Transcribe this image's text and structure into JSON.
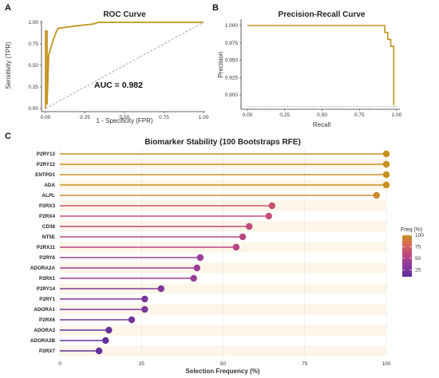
{
  "chart_data": [
    {
      "panel": "A",
      "type": "line",
      "title": "ROC Curve",
      "xlabel": "1 - Specificity (FPR)",
      "ylabel": "Sensitivity (TPR)",
      "xlim": [
        0,
        1
      ],
      "ylim": [
        0,
        1
      ],
      "xticks": [
        "0.00",
        "0.25",
        "0.50",
        "0.75",
        "1.00"
      ],
      "yticks": [
        "0.00",
        "0.25",
        "0.50",
        "0.75",
        "1.00"
      ],
      "annotation": "AUC = 0.982",
      "diagonal_reference": true,
      "color": "#c2921e",
      "x": [
        0,
        0,
        0.01,
        0.01,
        0.02,
        0.05,
        0.07,
        0.08,
        0.12,
        0.2,
        0.25,
        0.3,
        0.32,
        0.33,
        1.0
      ],
      "y": [
        0,
        0.9,
        0.9,
        0.05,
        0.62,
        0.8,
        0.9,
        0.93,
        0.94,
        0.96,
        0.97,
        0.98,
        0.99,
        1.0,
        1.0
      ]
    },
    {
      "panel": "B",
      "type": "line",
      "title": "Precision-Recall Curve",
      "xlabel": "Recall",
      "ylabel": "Precision",
      "xlim": [
        0,
        1
      ],
      "ylim": [
        0.885,
        1.0
      ],
      "xticks": [
        "0.00",
        "0.25",
        "0.50",
        "0.75",
        "1.00"
      ],
      "yticks": [
        "0.900",
        "0.925",
        "0.950",
        "0.975",
        "1.000"
      ],
      "baseline_y": 0.883,
      "color": "#c2921e",
      "x": [
        0,
        0.92,
        0.92,
        0.94,
        0.94,
        0.96,
        0.96,
        0.98,
        0.98
      ],
      "y": [
        1.0,
        1.0,
        0.99,
        0.99,
        0.98,
        0.98,
        0.97,
        0.97,
        0.885
      ]
    },
    {
      "panel": "C",
      "type": "bar",
      "subtype": "lollipop",
      "title": "Biomarker Stability (100 Bootstraps RFE)",
      "xlabel": "Selection Frequency (%)",
      "ylabel": "",
      "xlim": [
        0,
        100
      ],
      "xticks": [
        "0",
        "25",
        "50",
        "75",
        "100"
      ],
      "categories": [
        "P2RY13",
        "P2RY12",
        "ENTPD1",
        "ADA",
        "ALPL",
        "P2RX3",
        "P2RX4",
        "CD38",
        "NT5E",
        "P2RX11",
        "P2RY6",
        "ADORA2A",
        "P2RX1",
        "P2RY14",
        "P2RY1",
        "ADORA1",
        "P2RX6",
        "ADORA3",
        "ADORA2B",
        "P2RX7"
      ],
      "values": [
        100,
        100,
        100,
        100,
        97,
        65,
        64,
        58,
        56,
        54,
        43,
        42,
        41,
        31,
        26,
        26,
        22,
        15,
        14,
        12
      ],
      "legend": {
        "title": "Freq (%)",
        "ticks": [
          "100",
          "75",
          "50",
          "25"
        ],
        "placement": "right"
      },
      "colorscale": [
        "#5b2e9c",
        "#8f3a9b",
        "#c14a7c",
        "#dc6a52",
        "#c7901f"
      ]
    }
  ]
}
